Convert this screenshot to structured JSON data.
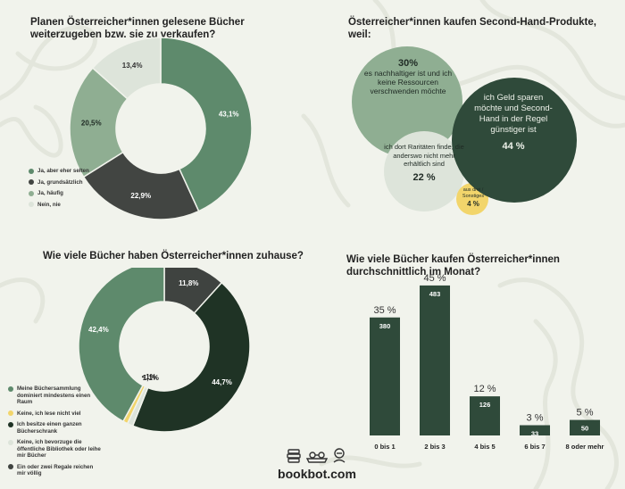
{
  "colors": {
    "background": "#f1f3ec",
    "dark_green": "#2f4a3a",
    "green": "#5e8a6c",
    "mid_green": "#8fae92",
    "light_gray": "#dde4da",
    "charcoal": "#3f4340",
    "very_dark_green": "#1f3325",
    "yellow": "#f2d56b"
  },
  "chart_data": [
    {
      "type": "pie",
      "title": "Planen Österreicher*innen gelesene Bücher weiterzugeben bzw. sie zu verkaufen?",
      "slices": [
        {
          "label": "Ja, aber eher selten",
          "value": 43.1,
          "value_label": "43,1%",
          "color": "#5e8a6c"
        },
        {
          "label": "Ja, grundsätzlich",
          "value": 22.9,
          "value_label": "22,9%",
          "color": "#424542"
        },
        {
          "label": "Ja, häufig",
          "value": 20.5,
          "value_label": "20,5%",
          "color": "#8fae92"
        },
        {
          "label": "Nein, nie",
          "value": 13.4,
          "value_label": "13,4%",
          "color": "#dde4da"
        }
      ]
    },
    {
      "type": "bubble",
      "title": "Österreicher*innen kaufen Second-Hand-Produkte, weil:",
      "items": [
        {
          "text": "es nachhaltiger ist und ich keine Ressourcen verschwenden möchte",
          "value": 30,
          "value_label": "30%",
          "color": "#8fae92"
        },
        {
          "text": "ich Geld sparen möchte und Second-Hand in der Regel günstiger ist",
          "value": 44,
          "value_label": "44 %",
          "color": "#2f4a3a"
        },
        {
          "text": "ich dort Raritäten finde, die anderswo nicht mehr erhältlich sind",
          "value": 22,
          "value_label": "22 %",
          "color": "#dde4da"
        },
        {
          "text": "aus drei / Sonstiges",
          "value": 4,
          "value_label": "4 %",
          "color": "#f2d56b"
        }
      ]
    },
    {
      "type": "pie",
      "title": "Wie viele Bücher haben Österreicher*innen zuhause?",
      "slices": [
        {
          "label": "Ein oder zwei Regale reichen mir völlig",
          "value": 11.8,
          "value_label": "11,8%",
          "color": "#3f4340"
        },
        {
          "label": "Ich besitze einen ganzen Bücherschrank",
          "value": 44.7,
          "value_label": "44,7%",
          "color": "#1f3325"
        },
        {
          "label": "Keine, ich bevorzuge die öffentliche Bibliothek oder leihe mir Bücher",
          "value": 1.1,
          "value_label": "1,1%",
          "color": "#dde4da"
        },
        {
          "label": "Keine, ich lese nicht viel",
          "value": 0.9,
          "value_label": "<1%",
          "color": "#f2d56b"
        },
        {
          "label": "Meine Büchersammlung dominiert mindestens einen Raum",
          "value": 42.4,
          "value_label": "42,4%",
          "color": "#5e8a6c"
        }
      ],
      "legend_order": [
        4,
        3,
        1,
        2,
        0
      ]
    },
    {
      "type": "bar",
      "title": "Wie viele Bücher kaufen Österreicher*innen durchschnittlich im Monat?",
      "categories": [
        "0 bis 1",
        "2 bis 3",
        "4 bis 5",
        "6 bis 7",
        "8 oder mehr"
      ],
      "values": [
        380,
        483,
        126,
        33,
        50
      ],
      "percent_labels": [
        "35 %",
        "45 %",
        "12 %",
        "3 %",
        "5 %"
      ],
      "ylim": [
        0,
        500
      ]
    }
  ],
  "footer": {
    "brand": "bookbot.com",
    "icons": [
      "book-stack-icon",
      "glasses-book-icon",
      "reader-icon"
    ]
  }
}
